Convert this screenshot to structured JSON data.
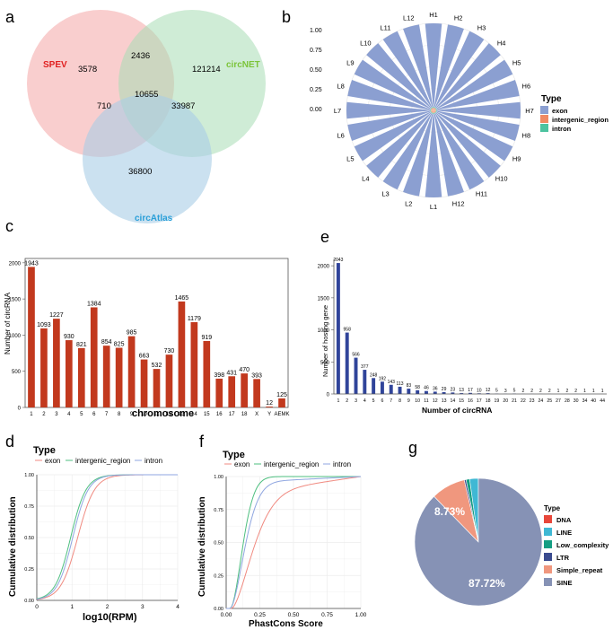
{
  "panels": {
    "a": "a",
    "b": "b",
    "c": "c",
    "d": "d",
    "e": "e",
    "f": "f",
    "g": "g"
  },
  "chart_data": [
    {
      "panel": "a",
      "type": "venn",
      "sets": [
        {
          "name": "SPEV",
          "color": "#f4a6a6",
          "label_color": "#e02020"
        },
        {
          "name": "circNET",
          "color": "#a8dcb4",
          "label_color": "#7cc43a"
        },
        {
          "name": "circAtlas",
          "color": "#a8cde6",
          "label_color": "#2a9fd8"
        }
      ],
      "regions": {
        "spev_only": 3578,
        "circnet_only": 121214,
        "circatlas_only": 36800,
        "spev_circnet": 2436,
        "spev_circatlas": 710,
        "circnet_circatlas": 33987,
        "all": 10655
      }
    },
    {
      "panel": "b",
      "type": "polar_bar",
      "categories": [
        "H1",
        "H2",
        "H3",
        "H4",
        "H5",
        "H6",
        "H7",
        "H8",
        "H9",
        "H10",
        "H11",
        "H12",
        "L1",
        "L2",
        "L3",
        "L4",
        "L5",
        "L6",
        "L7",
        "L8",
        "L9",
        "L10",
        "L11",
        "L12"
      ],
      "series": [
        {
          "name": "exon",
          "color": "#8b9fd1",
          "values": [
            0.96,
            0.96,
            0.96,
            0.96,
            0.96,
            0.96,
            0.96,
            0.96,
            0.96,
            0.96,
            0.96,
            0.96,
            0.96,
            0.96,
            0.96,
            0.96,
            0.96,
            0.96,
            0.96,
            0.96,
            0.96,
            0.96,
            0.96,
            0.96
          ]
        },
        {
          "name": "intergenic_region",
          "color": "#f08a63",
          "values": [
            0.03,
            0.03,
            0.03,
            0.03,
            0.03,
            0.03,
            0.03,
            0.03,
            0.03,
            0.03,
            0.03,
            0.03,
            0.03,
            0.03,
            0.03,
            0.03,
            0.03,
            0.03,
            0.03,
            0.03,
            0.03,
            0.03,
            0.03,
            0.03
          ]
        },
        {
          "name": "intron",
          "color": "#4dc3a0",
          "values": [
            0.01,
            0.01,
            0.01,
            0.01,
            0.01,
            0.01,
            0.01,
            0.01,
            0.01,
            0.01,
            0.01,
            0.01,
            0.01,
            0.01,
            0.01,
            0.01,
            0.01,
            0.01,
            0.01,
            0.01,
            0.01,
            0.01,
            0.01,
            0.01
          ]
        }
      ],
      "radial_ticks": [
        "1.00",
        "0.75",
        "0.50",
        "0.25",
        "0.00"
      ],
      "legend_title": "Type"
    },
    {
      "panel": "c",
      "type": "bar",
      "categories": [
        "1",
        "2",
        "3",
        "4",
        "5",
        "6",
        "7",
        "8",
        "9",
        "10",
        "11",
        "12",
        "13",
        "14",
        "15",
        "16",
        "17",
        "18",
        "X",
        "Y",
        "AEMK"
      ],
      "values": [
        1943,
        1093,
        1227,
        930,
        821,
        1384,
        854,
        825,
        985,
        663,
        532,
        730,
        1465,
        1179,
        919,
        398,
        431,
        470,
        393,
        12,
        125
      ],
      "color": "#c2391e",
      "xlabel": "chromosome",
      "ylabel": "Number of circRNA",
      "yticks": [
        "0",
        "500",
        "1000",
        "1500",
        "2000"
      ],
      "ylim": [
        0,
        2060
      ]
    },
    {
      "panel": "e",
      "type": "bar",
      "categories": [
        "1",
        "2",
        "3",
        "4",
        "5",
        "6",
        "7",
        "8",
        "9",
        "10",
        "11",
        "12",
        "13",
        "14",
        "15",
        "16",
        "17",
        "18",
        "19",
        "20",
        "21",
        "22",
        "23",
        "24",
        "25",
        "27",
        "28",
        "30",
        "34",
        "40",
        "44"
      ],
      "values": [
        2043,
        958,
        566,
        377,
        248,
        192,
        143,
        113,
        83,
        58,
        46,
        36,
        29,
        23,
        13,
        17,
        10,
        12,
        5,
        3,
        5,
        2,
        2,
        2,
        2,
        1,
        2,
        2,
        1,
        1,
        1
      ],
      "color": "#30449a",
      "xlabel": "Number of circRNA",
      "ylabel": "Number of hosting gene",
      "yticks": [
        "0",
        "500",
        "1000",
        "1500",
        "2000"
      ],
      "ylim": [
        0,
        2100
      ]
    },
    {
      "panel": "d",
      "type": "line",
      "legend_title": "Type",
      "series": [
        {
          "name": "exon",
          "color": "#f08a80"
        },
        {
          "name": "intergenic_region",
          "color": "#4dbf7f"
        },
        {
          "name": "intron",
          "color": "#8fa6e0"
        }
      ],
      "xlabel": "log10(RPM)",
      "ylabel": "Cumulative distribution",
      "xticks": [
        "0",
        "1",
        "2",
        "3",
        "4"
      ],
      "yticks": [
        "0.00",
        "0.25",
        "0.50",
        "0.75",
        "1.00"
      ]
    },
    {
      "panel": "f",
      "type": "line",
      "legend_title": "Type",
      "series": [
        {
          "name": "exon",
          "color": "#f08a80"
        },
        {
          "name": "intergenic_region",
          "color": "#4dbf7f"
        },
        {
          "name": "intron",
          "color": "#8fa6e0"
        }
      ],
      "xlabel": "PhastCons Score",
      "ylabel": "Cumulative distribution",
      "xticks": [
        "0.00",
        "0.25",
        "0.50",
        "0.75",
        "1.00"
      ],
      "yticks": [
        "0.00",
        "0.25",
        "0.50",
        "0.75",
        "1.00"
      ]
    },
    {
      "panel": "g",
      "type": "pie",
      "legend_title": "Type",
      "slices": [
        {
          "name": "DNA",
          "color": "#e8473a",
          "value": 0.0
        },
        {
          "name": "LINE",
          "color": "#3fb8d4",
          "value": 2.2
        },
        {
          "name": "Low_complexity",
          "color": "#159e83",
          "value": 0.9
        },
        {
          "name": "LTR",
          "color": "#3a4b8f",
          "value": 0.45
        },
        {
          "name": "Simple_repeat",
          "color": "#f0977e",
          "value": 8.73
        },
        {
          "name": "SINE",
          "color": "#8692b5",
          "value": 87.72
        }
      ],
      "labels": [
        "8.73%",
        "87.72%"
      ]
    }
  ]
}
